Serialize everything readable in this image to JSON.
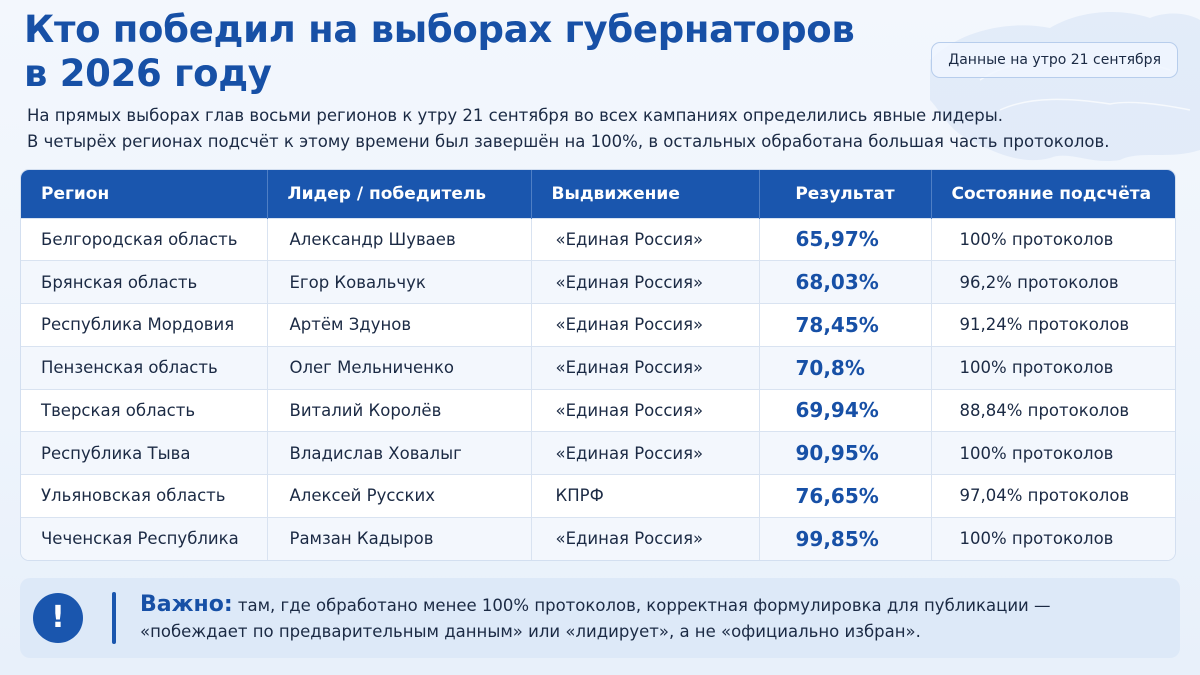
{
  "header": {
    "title_line1": "Кто победил на выборах губернаторов",
    "title_line2": "в 2026 году",
    "date_badge": "Данные на утро 21 сентября",
    "subtitle_line1": "На прямых выборах глав восьми регионов к утру 21 сентября во всех кампаниях определились явные лидеры.",
    "subtitle_line2": "В четырёх регионах подсчёт к этому времени был завершён на 100%, в остальных обработана большая часть протоколов."
  },
  "table": {
    "columns": [
      "Регион",
      "Лидер / победитель",
      "Выдвижение",
      "Результат",
      "Состояние подсчёта"
    ],
    "rows": [
      {
        "region": "Белгородская область",
        "leader": "Александр Шуваев",
        "party": "«Единая Россия»",
        "result": "65,97%",
        "status": "100% протоколов"
      },
      {
        "region": "Брянская область",
        "leader": "Егор Ковальчук",
        "party": "«Единая Россия»",
        "result": "68,03%",
        "status": "96,2% протоколов"
      },
      {
        "region": "Республика Мордовия",
        "leader": "Артём Здунов",
        "party": "«Единая Россия»",
        "result": "78,45%",
        "status": "91,24% протоколов"
      },
      {
        "region": "Пензенская область",
        "leader": "Олег Мельниченко",
        "party": "«Единая Россия»",
        "result": "70,8%",
        "status": "100% протоколов"
      },
      {
        "region": "Тверская область",
        "leader": "Виталий Королёв",
        "party": "«Единая Россия»",
        "result": "69,94%",
        "status": "88,84% протоколов"
      },
      {
        "region": "Республика Тыва",
        "leader": "Владислав Ховалыг",
        "party": "«Единая Россия»",
        "result": "90,95%",
        "status": "100% протоколов"
      },
      {
        "region": "Ульяновская область",
        "leader": "Алексей Русских",
        "party": "КПРФ",
        "result": "76,65%",
        "status": "97,04% протоколов"
      },
      {
        "region": "Чеченская Республика",
        "leader": "Рамзан Кадыров",
        "party": "«Единая Россия»",
        "result": "99,85%",
        "status": "100% протоколов"
      }
    ]
  },
  "note": {
    "icon": "!",
    "lead": "Важно:",
    "text_line1": " там, где обработано менее 100% протоколов, корректная формулировка для публикации —",
    "text_line2": "«побеждает по предварительным данным» или «лидирует», а не «официально избран»."
  },
  "colors": {
    "accent": "#1a56ae",
    "title": "#1750a6",
    "note_bg": "#dde9f8"
  }
}
